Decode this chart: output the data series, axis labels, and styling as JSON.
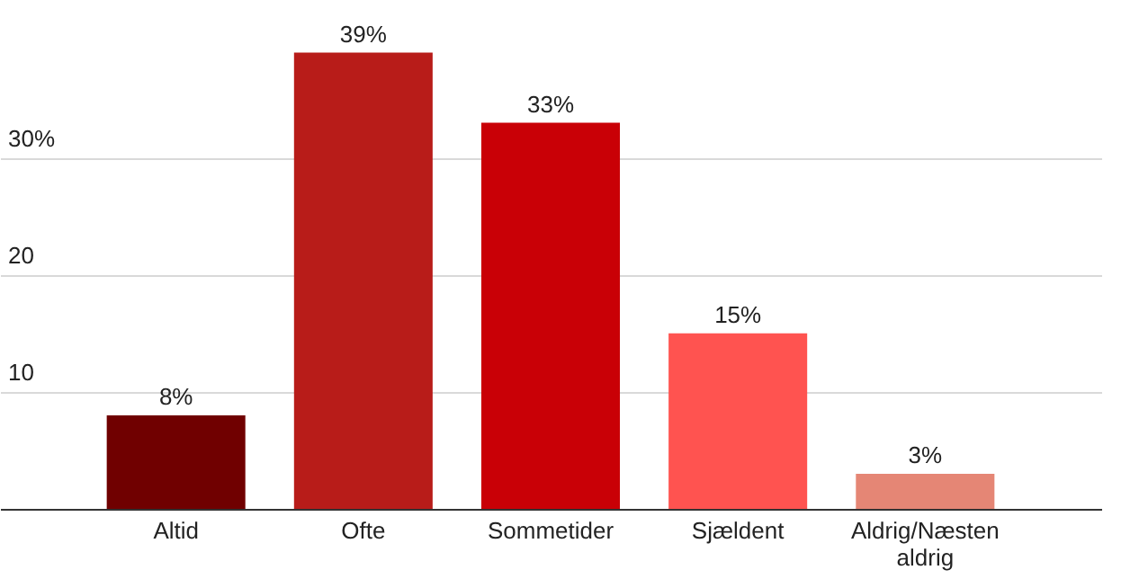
{
  "chart_data": {
    "type": "bar",
    "categories": [
      "Altid",
      "Ofte",
      "Sommetider",
      "Sjældent",
      "Aldrig/Næsten aldrig"
    ],
    "values": [
      8,
      39,
      33,
      15,
      3
    ],
    "colors": [
      "#700000",
      "#b81c19",
      "#c90006",
      "#ff5350",
      "#e58675"
    ],
    "value_labels": [
      "8%",
      "39%",
      "33%",
      "15%",
      "3%"
    ],
    "ylim": [
      0,
      43.5
    ],
    "yticks": [
      10,
      20,
      {
        "value": 30,
        "label": "30%"
      }
    ],
    "grid": "y"
  }
}
